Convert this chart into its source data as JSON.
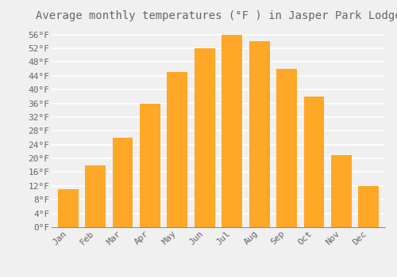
{
  "title": "Average monthly temperatures (°F ) in Jasper Park Lodge",
  "months": [
    "Jan",
    "Feb",
    "Mar",
    "Apr",
    "May",
    "Jun",
    "Jul",
    "Aug",
    "Sep",
    "Oct",
    "Nov",
    "Dec"
  ],
  "values": [
    11,
    18,
    26,
    36,
    45,
    52,
    56,
    54,
    46,
    38,
    21,
    12
  ],
  "bar_color_top": "#FFA726",
  "bar_color_bot": "#FFB830",
  "bar_edge_color": "none",
  "background_color": "#F0F0F0",
  "grid_color": "#FFFFFF",
  "text_color": "#666666",
  "title_fontsize": 10,
  "tick_fontsize": 8,
  "ylim_min": 0,
  "ylim_max": 58,
  "ytick_values": [
    0,
    4,
    8,
    12,
    16,
    20,
    24,
    28,
    32,
    36,
    40,
    44,
    48,
    52,
    56
  ],
  "bar_width": 0.75
}
